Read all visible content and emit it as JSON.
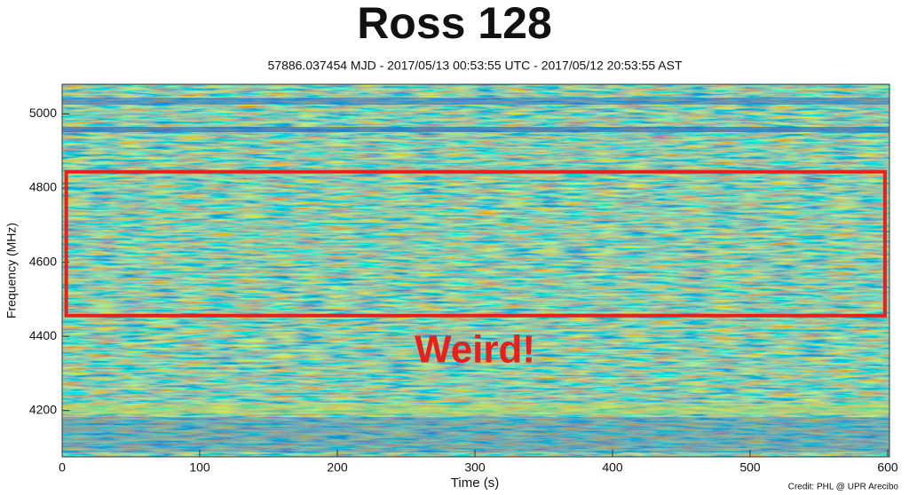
{
  "chart_data": {
    "type": "spectrogram",
    "title": "Ross 128",
    "subtitle": "57886.037454 MJD - 2017/05/13 00:53:55 UTC - 2017/05/12 20:53:55 AST",
    "x_label": "Time (s)",
    "y_label": "Frequency (MHz)",
    "xlim": [
      0,
      600
    ],
    "ylim": [
      4075,
      5080
    ],
    "xticks": [
      0,
      100,
      200,
      300,
      400,
      500,
      600
    ],
    "yticks": [
      4200,
      4400,
      4600,
      4800,
      5000
    ],
    "highlight": {
      "xlim": [
        3,
        598
      ],
      "ylim": [
        4456,
        4844
      ],
      "color": "#e8201c"
    },
    "annotation": "Weird!",
    "credit": "Credit: PHL @ UPR Arecibo"
  }
}
